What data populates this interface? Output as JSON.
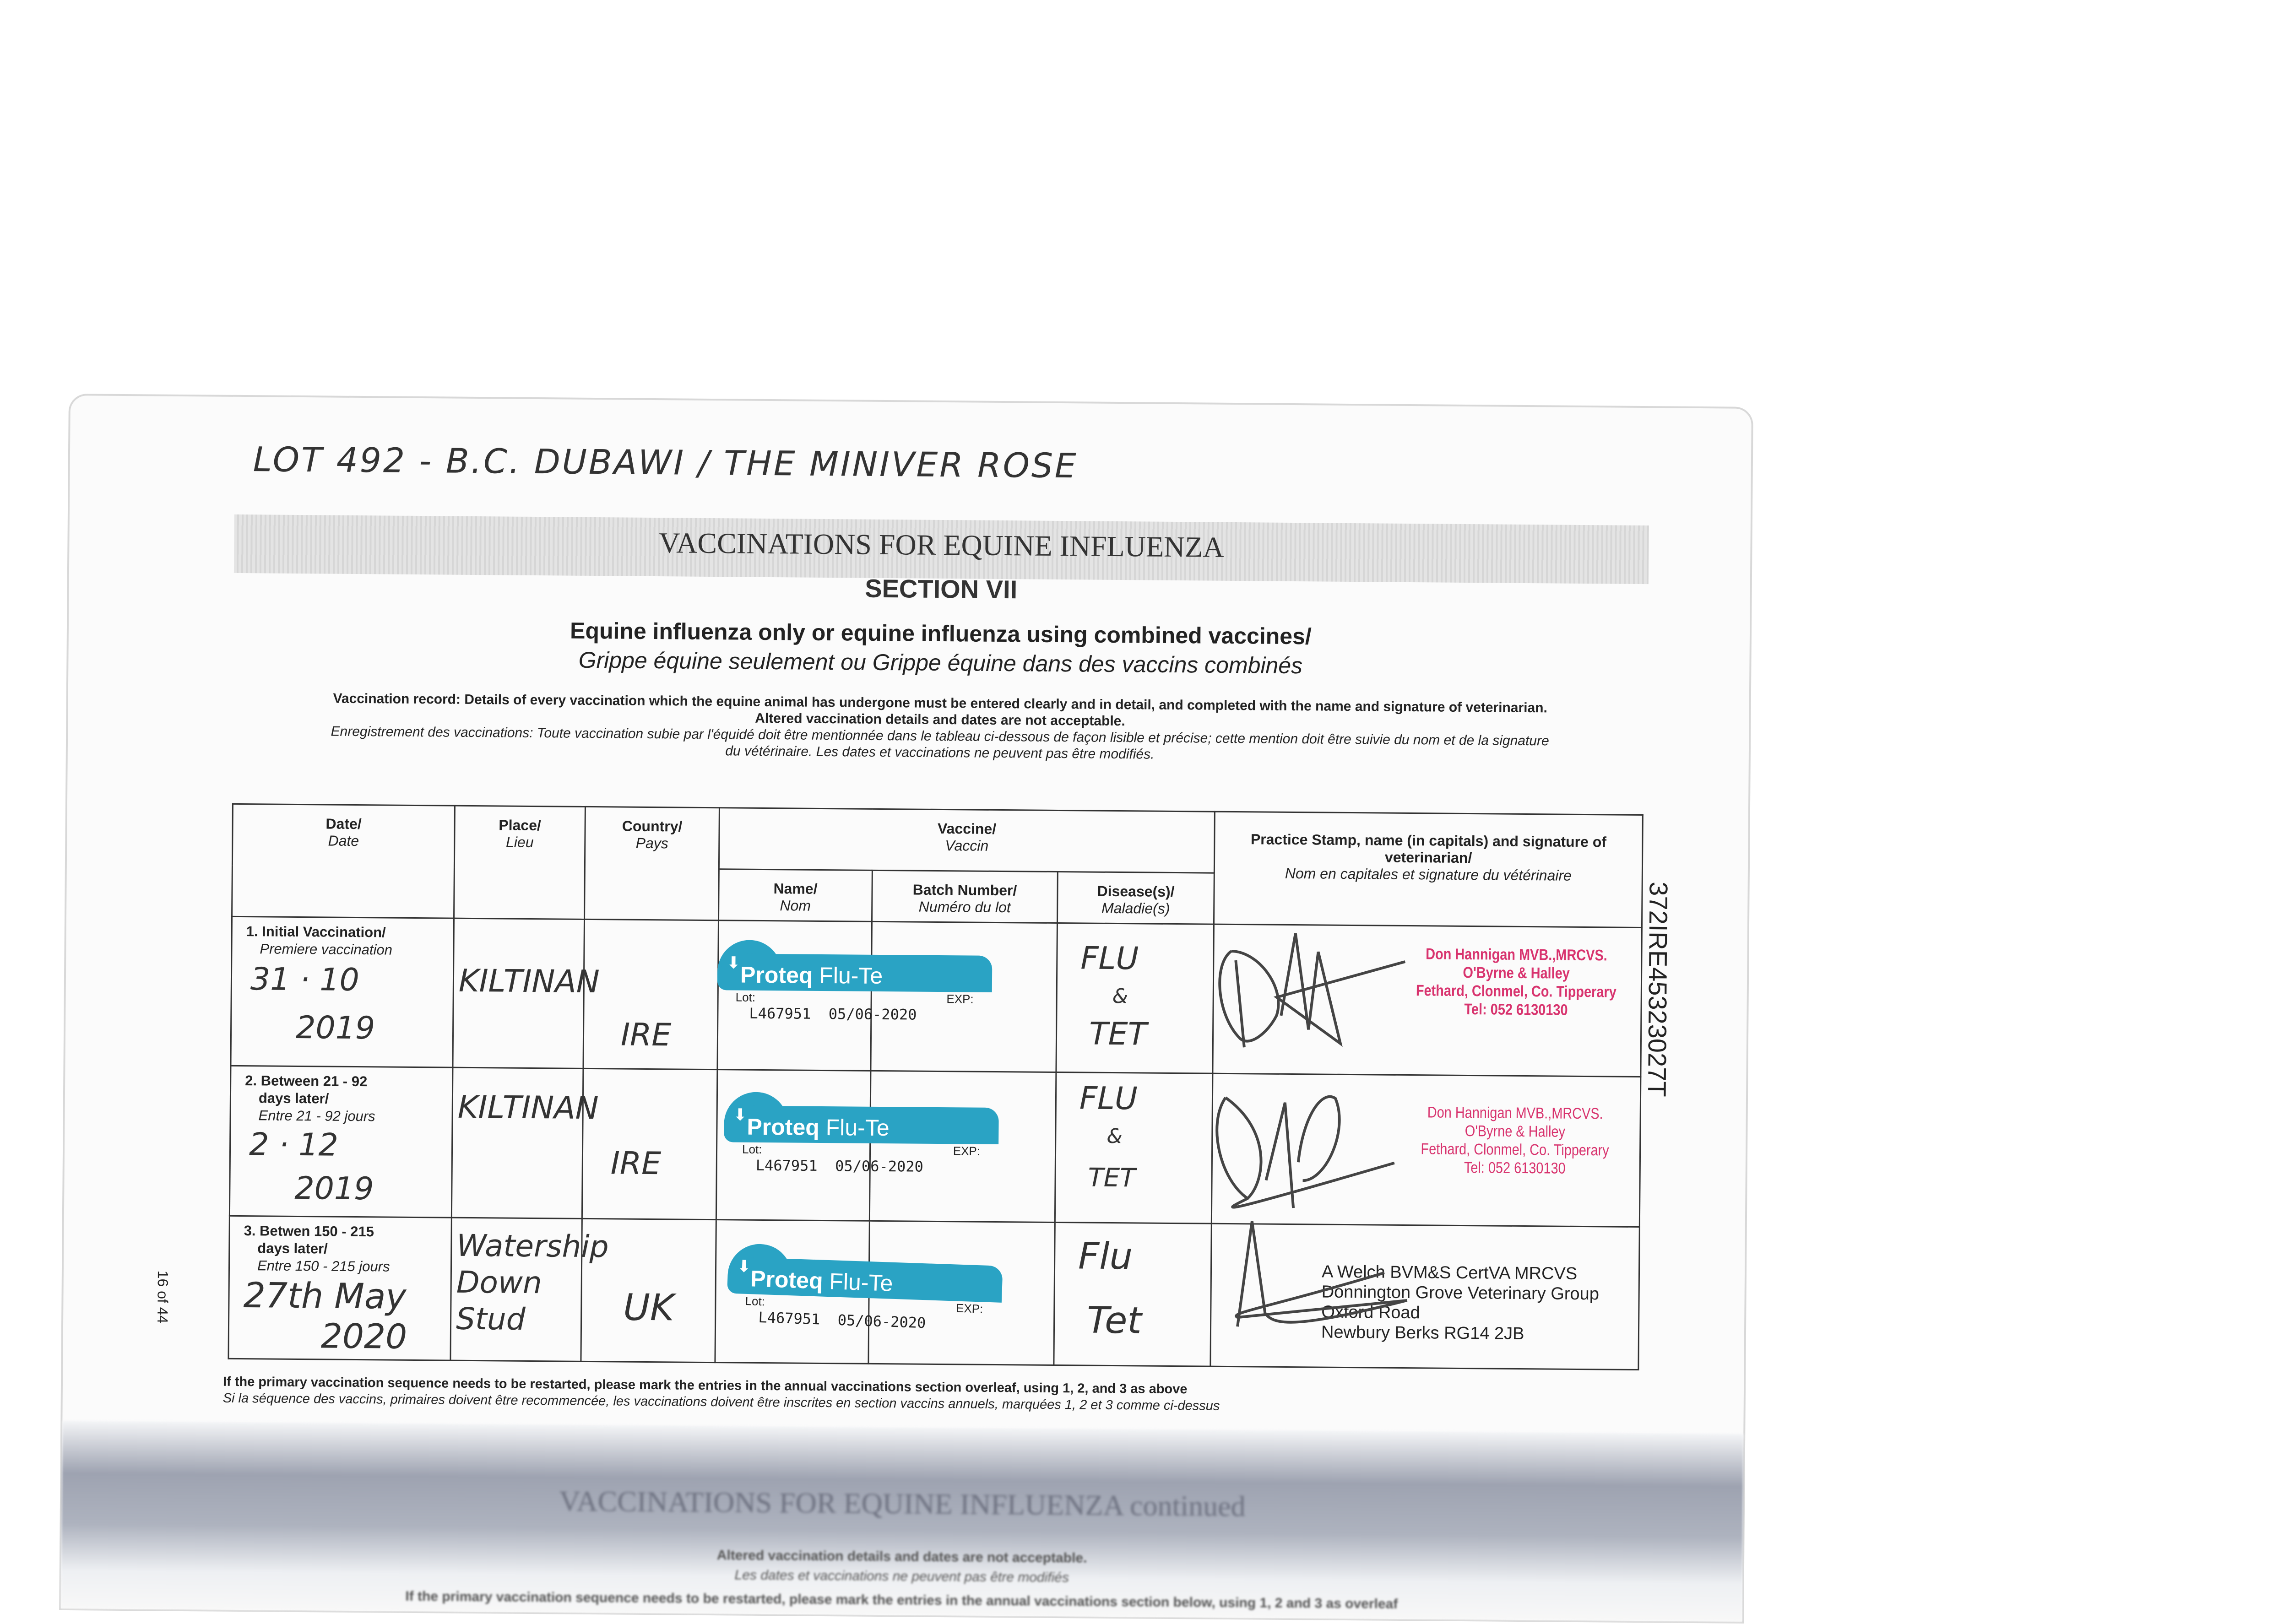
{
  "header": {
    "handwritten_title": "LOT 492 - B.C. DUBAWI / THE MINIVER ROSE",
    "band_title": "VACCINATIONS FOR EQUINE INFLUENZA",
    "section": "SECTION VII",
    "subtitle_en": "Equine influenza only or equine influenza using combined vaccines/",
    "subtitle_fr": "Grippe équine seulement ou Grippe équine dans des vaccins combinés"
  },
  "instructions": {
    "en_line1": "Vaccination record: Details of every vaccination which the equine animal has undergone must be entered clearly and in detail, and completed with the name and signature of veterinarian.",
    "en_line2": "Altered vaccination details and dates are not acceptable.",
    "fr_line1": "Enregistrement des vaccinations: Toute vaccination subie par l'équidé doit être mentionnée dans le tableau ci-dessous de façon lisible et précise; cette mention doit être suivie du nom et de la signature",
    "fr_line2": "du vétérinaire. Les dates et vaccinations ne peuvent pas être modifiés."
  },
  "table": {
    "headers": {
      "date_en": "Date/",
      "date_fr": "Date",
      "place_en": "Place/",
      "place_fr": "Lieu",
      "country_en": "Country/",
      "country_fr": "Pays",
      "vaccine_en": "Vaccine/",
      "vaccine_fr": "Vaccin",
      "name_en": "Name/",
      "name_fr": "Nom",
      "batch_en": "Batch Number/",
      "batch_fr": "Numéro du lot",
      "disease_en": "Disease(s)/",
      "disease_fr": "Maladie(s)",
      "stamp_en": "Practice Stamp, name (in capitals) and signature of veterinarian/",
      "stamp_fr": "Nom en capitales et signature du vétérinaire"
    },
    "rows": [
      {
        "label_en": "1. Initial Vaccination/",
        "label_en2": "",
        "label_fr": "Premiere vaccination",
        "date_line1": "31 · 10",
        "date_line2": "2019",
        "place": "KILTINAN",
        "country": "IRE",
        "vaccine_brand": "Proteq",
        "vaccine_product": "Flu-Te",
        "lot_label": "Lot:",
        "exp_label": "EXP:",
        "lot_number": "L467951",
        "expiry": "05/06-2020",
        "disease_line1": "FLU",
        "disease_line2": "&",
        "disease_line3": "TET",
        "stamp_lines": [
          "Don Hannigan MVB.,MRCVS.",
          "O'Byrne & Halley",
          "Fethard, Clonmel, Co. Tipperary",
          "Tel: 052 6130130"
        ]
      },
      {
        "label_en": "2. Between 21 - 92",
        "label_en2": "days later/",
        "label_fr": "Entre 21 - 92 jours",
        "date_line1": "2 · 12",
        "date_line2": "2019",
        "place": "KILTINAN",
        "country": "IRE",
        "vaccine_brand": "Proteq",
        "vaccine_product": "Flu-Te",
        "lot_label": "Lot:",
        "exp_label": "EXP:",
        "lot_number": "L467951",
        "expiry": "05/06-2020",
        "disease_line1": "FLU",
        "disease_line2": "&",
        "disease_line3": "TET",
        "stamp_lines": [
          "Don Hannigan MVB.,MRCVS.",
          "O'Byrne & Halley",
          "Fethard, Clonmel, Co. Tipperary",
          "Tel: 052 6130130"
        ]
      },
      {
        "label_en": "3. Betwen 150 - 215",
        "label_en2": "days later/",
        "label_fr": "Entre 150 - 215 jours",
        "date_line1": "27th May",
        "date_line2": "2020",
        "place": "Watership Down Stud",
        "country": "UK",
        "vaccine_brand": "Proteq",
        "vaccine_product": "Flu-Te",
        "lot_label": "Lot:",
        "exp_label": "EXP:",
        "lot_number": "L467951",
        "expiry": "05/06-2020",
        "disease_line1": "Flu",
        "disease_line2": "",
        "disease_line3": "Tet",
        "stamp_lines": [
          "A Welch BVM&S CertVA MRCVS",
          "Donnington Grove Veterinary Group",
          "Oxford Road",
          "Newbury Berks RG14 2JB"
        ]
      }
    ]
  },
  "footnotes": {
    "en": "If the primary vaccination sequence needs to be restarted, please mark the entries in the annual vaccinations section overleaf, using 1, 2, and 3 as above",
    "fr": "Si la séquence des vaccins, primaires doivent être recommencée, les vaccinations doivent être inscrites en section vaccins annuels, marquées 1, 2 et 3 comme ci-dessus"
  },
  "margins": {
    "page_number": "16 of 44",
    "passport_number": "372IRE45323027T"
  },
  "next_page_ghost": {
    "title": "VACCINATIONS FOR EQUINE INFLUENZA continued",
    "line1": "Altered vaccination details and dates are not acceptable.",
    "line2": "Les dates et vaccinations ne peuvent pas être modifiés",
    "line3": "If the primary vaccination sequence needs to be restarted, please mark the entries in the annual vaccinations section below, using 1, 2 and 3 as overleaf"
  },
  "colors": {
    "label_teal": "#2aa3c4",
    "stamp_pink": "#d8336e",
    "ink": "#333333"
  }
}
